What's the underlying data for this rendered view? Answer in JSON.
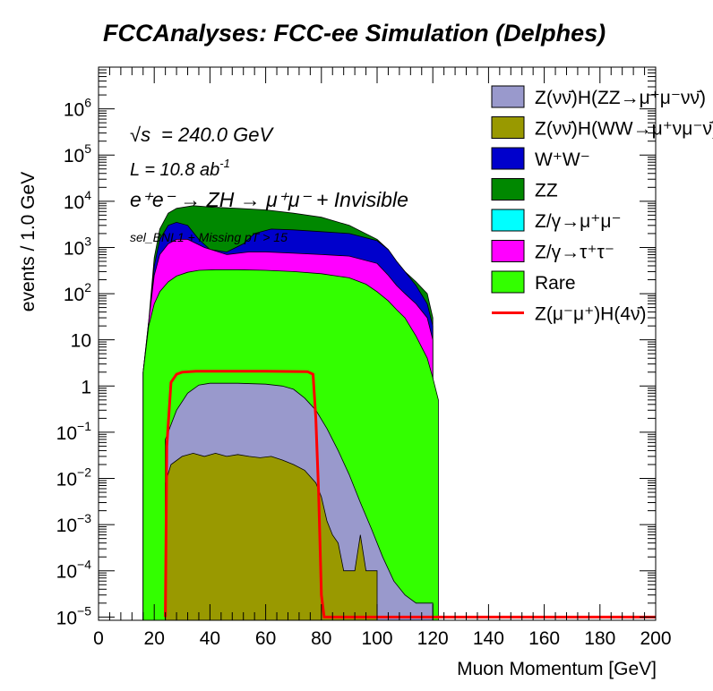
{
  "chart_data": {
    "type": "histogram-stacked",
    "title": "FCCAnalyses: FCC-ee Simulation (Delphes)",
    "xlabel": "Muon Momentum [GeV]",
    "ylabel": "events / 1.0 GeV",
    "xlim": [
      0,
      200
    ],
    "ylim": [
      8.5e-06,
      8000000
    ],
    "y_scale": "log",
    "x_ticks": [
      0,
      20,
      40,
      60,
      80,
      100,
      120,
      140,
      160,
      180,
      200
    ],
    "x_tick_labels": [
      "0",
      "20",
      "40",
      "60",
      "80",
      "100",
      "120",
      "140",
      "160",
      "180",
      "200"
    ],
    "y_ticks": [
      1e-05,
      0.0001,
      0.001,
      0.01,
      0.1,
      1,
      10,
      100,
      1000,
      10000,
      100000,
      1000000
    ],
    "y_tick_labels": [
      {
        "base": "10",
        "exp": "−5"
      },
      {
        "base": "10",
        "exp": "−4"
      },
      {
        "base": "10",
        "exp": "−3"
      },
      {
        "base": "10",
        "exp": "−2"
      },
      {
        "base": "10",
        "exp": "−1"
      },
      {
        "base": "1",
        "exp": ""
      },
      {
        "base": "10",
        "exp": ""
      },
      {
        "base": "10",
        "exp": "2"
      },
      {
        "base": "10",
        "exp": "3"
      },
      {
        "base": "10",
        "exp": "4"
      },
      {
        "base": "10",
        "exp": "5"
      },
      {
        "base": "10",
        "exp": "6"
      }
    ],
    "annotations": {
      "sqrt_s": "= 240.0 GeV",
      "lumi_prefix": "L = 10.8 ab",
      "lumi_exp": "-1",
      "process": "e⁺e⁻ → ZH → μ⁺μ⁻ + Invisible",
      "selection": "sel_BNL1 + Missing pT > 15"
    },
    "legend_position": "top-right",
    "series": [
      {
        "name": "Z(νν̄)H(ZZ→μ⁺μ⁻νν̄)",
        "color": "#9999cc",
        "kind": "fill",
        "points": [
          [
            24,
            0.07
          ],
          [
            28,
            0.3
          ],
          [
            32,
            0.7
          ],
          [
            36,
            1.05
          ],
          [
            40,
            1.15
          ],
          [
            50,
            1.15
          ],
          [
            60,
            1.1
          ],
          [
            66,
            1.0
          ],
          [
            70,
            0.85
          ],
          [
            74,
            0.55
          ],
          [
            78,
            0.3
          ],
          [
            82,
            0.12
          ],
          [
            86,
            0.04
          ],
          [
            90,
            0.012
          ],
          [
            94,
            0.003
          ],
          [
            98,
            0.0008
          ],
          [
            102,
            0.0002
          ],
          [
            106,
            6e-05
          ],
          [
            110,
            3e-05
          ],
          [
            114,
            2e-05
          ],
          [
            118,
            2e-05
          ],
          [
            120,
            2e-05
          ]
        ]
      },
      {
        "name": "Z(νν̄)H(WW→μ⁺νμ⁻ν̄)",
        "color": "#999900",
        "kind": "fill",
        "points": [
          [
            24,
            0.008
          ],
          [
            26,
            0.02
          ],
          [
            30,
            0.03
          ],
          [
            34,
            0.035
          ],
          [
            38,
            0.03
          ],
          [
            42,
            0.035
          ],
          [
            46,
            0.03
          ],
          [
            50,
            0.033
          ],
          [
            54,
            0.03
          ],
          [
            58,
            0.028
          ],
          [
            62,
            0.03
          ],
          [
            66,
            0.025
          ],
          [
            70,
            0.02
          ],
          [
            74,
            0.015
          ],
          [
            78,
            0.008
          ],
          [
            80,
            0.004
          ],
          [
            82,
            0.0012
          ],
          [
            84,
            0.0006
          ],
          [
            86,
            0.0004
          ],
          [
            88,
            0.0001
          ],
          [
            92,
            0.0001
          ],
          [
            94,
            0.0006
          ],
          [
            96,
            0.0001
          ],
          [
            100,
            0.0001
          ]
        ]
      },
      {
        "name": "W⁺W⁻",
        "color": "#0000cc",
        "kind": "fill",
        "points": [
          [
            16,
            2
          ],
          [
            18,
            20
          ],
          [
            20,
            400
          ],
          [
            22,
            1500
          ],
          [
            25,
            3000
          ],
          [
            28,
            3500
          ],
          [
            32,
            3000
          ],
          [
            36,
            1500
          ],
          [
            40,
            900
          ],
          [
            46,
            800
          ],
          [
            52,
            1200
          ],
          [
            56,
            2000
          ],
          [
            62,
            2500
          ],
          [
            70,
            2400
          ],
          [
            80,
            2200
          ],
          [
            90,
            2000
          ],
          [
            100,
            1400
          ],
          [
            104,
            900
          ],
          [
            107,
            500
          ],
          [
            110,
            300
          ],
          [
            114,
            150
          ],
          [
            118,
            60
          ],
          [
            120,
            20
          ]
        ]
      },
      {
        "name": "ZZ",
        "color": "#008800",
        "kind": "fill",
        "points": [
          [
            16,
            2
          ],
          [
            18,
            25
          ],
          [
            20,
            600
          ],
          [
            22,
            2500
          ],
          [
            25,
            5500
          ],
          [
            28,
            7000
          ],
          [
            34,
            8000
          ],
          [
            40,
            7500
          ],
          [
            50,
            7000
          ],
          [
            60,
            6500
          ],
          [
            70,
            5500
          ],
          [
            80,
            4500
          ],
          [
            90,
            3000
          ],
          [
            100,
            1500
          ],
          [
            104,
            900
          ],
          [
            107,
            500
          ],
          [
            110,
            300
          ],
          [
            114,
            180
          ],
          [
            118,
            100
          ],
          [
            120,
            30
          ]
        ]
      },
      {
        "name": "Z/γ→μ⁺μ⁻",
        "color": "#00ffff",
        "kind": "fill",
        "points": []
      },
      {
        "name": "Z/γ→τ⁺τ⁻",
        "color": "#ff00ff",
        "kind": "fill",
        "points": [
          [
            16,
            2
          ],
          [
            18,
            25
          ],
          [
            20,
            250
          ],
          [
            22,
            700
          ],
          [
            25,
            1200
          ],
          [
            28,
            1500
          ],
          [
            32,
            1500
          ],
          [
            38,
            1000
          ],
          [
            46,
            700
          ],
          [
            54,
            800
          ],
          [
            60,
            800
          ],
          [
            70,
            750
          ],
          [
            80,
            700
          ],
          [
            90,
            650
          ],
          [
            100,
            450
          ],
          [
            104,
            250
          ],
          [
            107,
            150
          ],
          [
            110,
            100
          ],
          [
            114,
            60
          ],
          [
            118,
            30
          ],
          [
            120,
            10
          ]
        ]
      },
      {
        "name": "Rare",
        "color": "#33ff00",
        "kind": "fill",
        "points": [
          [
            16,
            2
          ],
          [
            18,
            20
          ],
          [
            20,
            60
          ],
          [
            22,
            110
          ],
          [
            25,
            180
          ],
          [
            28,
            240
          ],
          [
            32,
            290
          ],
          [
            36,
            320
          ],
          [
            42,
            330
          ],
          [
            50,
            330
          ],
          [
            60,
            320
          ],
          [
            70,
            300
          ],
          [
            80,
            270
          ],
          [
            90,
            220
          ],
          [
            96,
            160
          ],
          [
            100,
            110
          ],
          [
            104,
            70
          ],
          [
            107,
            45
          ],
          [
            110,
            30
          ],
          [
            114,
            12
          ],
          [
            118,
            4
          ],
          [
            120,
            1.5
          ],
          [
            122,
            0.5
          ]
        ]
      },
      {
        "name": "Z(μ⁻μ⁺)H(4ν̄)",
        "color": "#ff0000",
        "kind": "line",
        "points": [
          [
            24,
            1e-05
          ],
          [
            24.5,
            0.05
          ],
          [
            26,
            1.2
          ],
          [
            28,
            1.8
          ],
          [
            30,
            2.0
          ],
          [
            35,
            2.1
          ],
          [
            40,
            2.1
          ],
          [
            60,
            2.1
          ],
          [
            75,
            2.05
          ],
          [
            77,
            1.8
          ],
          [
            78,
            0.2
          ],
          [
            79,
            0.005
          ],
          [
            80,
            3e-05
          ],
          [
            81,
            1e-05
          ],
          [
            200,
            1e-05
          ]
        ]
      }
    ]
  }
}
